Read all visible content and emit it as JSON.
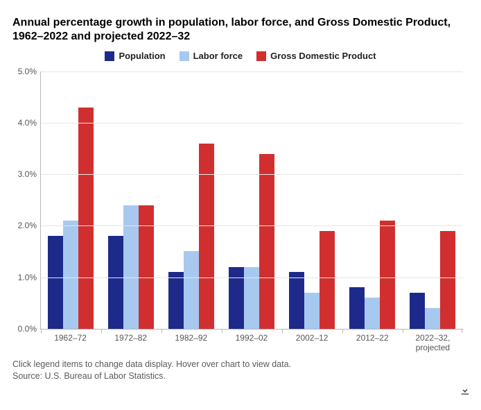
{
  "title": "Annual percentage growth in population, labor force, and Gross Domestic Product, 1962–2022 and projected 2022–32",
  "legend": {
    "items": [
      {
        "name": "population",
        "label": "Population",
        "color": "#1e2a8a"
      },
      {
        "name": "labor_force",
        "label": "Labor force",
        "color": "#a7c9ef"
      },
      {
        "name": "gdp",
        "label": "Gross Domestic Product",
        "color": "#d12f2f"
      }
    ]
  },
  "chart": {
    "type": "grouped-bar",
    "ylim": [
      0,
      5
    ],
    "ytick_step": 1,
    "ytick_format_suffix": "%",
    "ytick_decimals": 1,
    "grid_color": "#e6e6e6",
    "axis_color": "#b7b7b7",
    "background_color": "#ffffff",
    "label_fontsize": 12,
    "label_color": "#555555",
    "categories": [
      "1962–72",
      "1972–82",
      "1982–92",
      "1992–02",
      "2002–12",
      "2012–22",
      "2022–32, projected"
    ],
    "series": [
      {
        "key": "population",
        "values": [
          1.8,
          1.8,
          1.1,
          1.2,
          1.1,
          0.8,
          0.7
        ]
      },
      {
        "key": "labor_force",
        "values": [
          2.1,
          2.4,
          1.5,
          1.2,
          0.7,
          0.6,
          0.4
        ]
      },
      {
        "key": "gdp",
        "values": [
          4.3,
          2.4,
          3.6,
          3.4,
          1.9,
          2.1,
          1.9
        ]
      }
    ]
  },
  "footer": {
    "hint": "Click legend items to change data display. Hover over chart to view data.",
    "source": "Source: U.S. Bureau of Labor Statistics."
  },
  "icons": {
    "download": "download-icon"
  }
}
